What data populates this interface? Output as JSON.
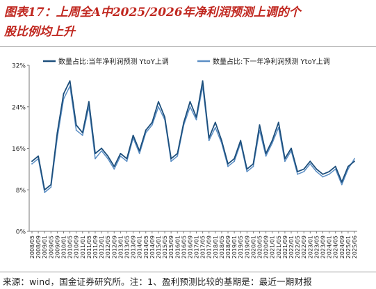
{
  "figure": {
    "title_line1": "图表17：上周全A中2025/2026年净利润预测上调的个",
    "title_line2": "股比例均上升",
    "source": "来源：wind，国金证券研究所。注：1、盈利预测比较的基期是：最近一期财报"
  },
  "colors": {
    "title": "#c0271f",
    "series_current": "#1d4f7c",
    "series_next": "#5b8ec4"
  },
  "chart_data": {
    "type": "line",
    "title": "",
    "xlabel": "",
    "ylabel": "",
    "ylim": [
      0,
      32
    ],
    "y_ticks": [
      "0%",
      "8%",
      "16%",
      "24%",
      "32%"
    ],
    "y_tick_values": [
      0,
      8,
      16,
      24,
      32
    ],
    "grid": false,
    "legend_position": "top",
    "x_tick_labels": [
      "2008/05",
      "2008/09",
      "2009/01",
      "2009/05",
      "2009/09",
      "2010/01",
      "2010/05",
      "2010/09",
      "2011/01",
      "2011/05",
      "2011/09",
      "2012/01",
      "2012/05",
      "2012/09",
      "2013/01",
      "2013/05",
      "2013/09",
      "2014/01",
      "2014/05",
      "2014/09",
      "2015/01",
      "2015/05",
      "2015/09",
      "2016/01",
      "2016/05",
      "2016/09",
      "2017/01",
      "2017/05",
      "2017/09",
      "2018/01",
      "2018/05",
      "2018/09",
      "2019/01",
      "2019/05",
      "2019/09",
      "2020/01",
      "2020/05",
      "2020/09",
      "2021/01",
      "2021/05",
      "2021/09",
      "2022/01",
      "2022/05",
      "2022/09",
      "2023/01",
      "2023/05",
      "2023/09",
      "2024/01",
      "2024/05",
      "2024/09",
      "2025/01",
      "2025/06"
    ],
    "x": [
      "2008/05",
      "2008/09",
      "2009/01",
      "2009/05",
      "2009/09",
      "2010/01",
      "2010/05",
      "2010/09",
      "2011/01",
      "2011/05",
      "2011/09",
      "2012/01",
      "2012/05",
      "2012/09",
      "2013/01",
      "2013/05",
      "2013/09",
      "2014/01",
      "2014/05",
      "2014/09",
      "2015/01",
      "2015/05",
      "2015/09",
      "2016/01",
      "2016/05",
      "2016/09",
      "2017/01",
      "2017/05",
      "2017/09",
      "2018/01",
      "2018/05",
      "2018/09",
      "2019/01",
      "2019/05",
      "2019/09",
      "2020/01",
      "2020/05",
      "2020/09",
      "2021/01",
      "2021/05",
      "2021/09",
      "2022/01",
      "2022/05",
      "2022/09",
      "2023/01",
      "2023/05",
      "2023/09",
      "2024/01",
      "2024/05",
      "2024/09",
      "2025/01",
      "2025/06"
    ],
    "series": [
      {
        "name": "数量占比:当年净利润预测 YtoY上调",
        "color": "#1d4f7c",
        "values": [
          13.5,
          14.5,
          8.0,
          9.0,
          19.0,
          26.5,
          29.0,
          20.5,
          19.0,
          25.0,
          15.0,
          16.0,
          14.5,
          12.5,
          15.0,
          14.0,
          18.5,
          15.5,
          19.5,
          21.0,
          25.0,
          22.0,
          14.0,
          15.0,
          21.0,
          25.0,
          22.0,
          29.0,
          18.0,
          21.0,
          17.5,
          13.0,
          14.0,
          17.5,
          12.0,
          13.0,
          20.5,
          15.0,
          17.5,
          21.0,
          14.0,
          16.0,
          11.5,
          12.0,
          13.5,
          12.0,
          11.0,
          11.5,
          12.5,
          9.5,
          12.5,
          13.5
        ]
      },
      {
        "name": "数量占比:下一年净利润预测 YtoY上调",
        "color": "#5b8ec4",
        "values": [
          13.0,
          14.0,
          7.5,
          8.5,
          18.0,
          25.5,
          28.0,
          19.5,
          18.5,
          24.0,
          14.0,
          15.5,
          14.0,
          12.0,
          14.5,
          13.5,
          18.0,
          15.0,
          19.0,
          20.5,
          24.0,
          21.5,
          13.5,
          14.5,
          20.5,
          24.0,
          21.5,
          28.0,
          17.5,
          20.0,
          17.0,
          12.5,
          13.5,
          17.0,
          11.5,
          12.5,
          19.5,
          14.5,
          17.0,
          20.0,
          13.5,
          15.5,
          11.0,
          11.5,
          13.0,
          11.5,
          10.5,
          11.0,
          12.0,
          9.0,
          12.0,
          14.0
        ]
      }
    ]
  }
}
